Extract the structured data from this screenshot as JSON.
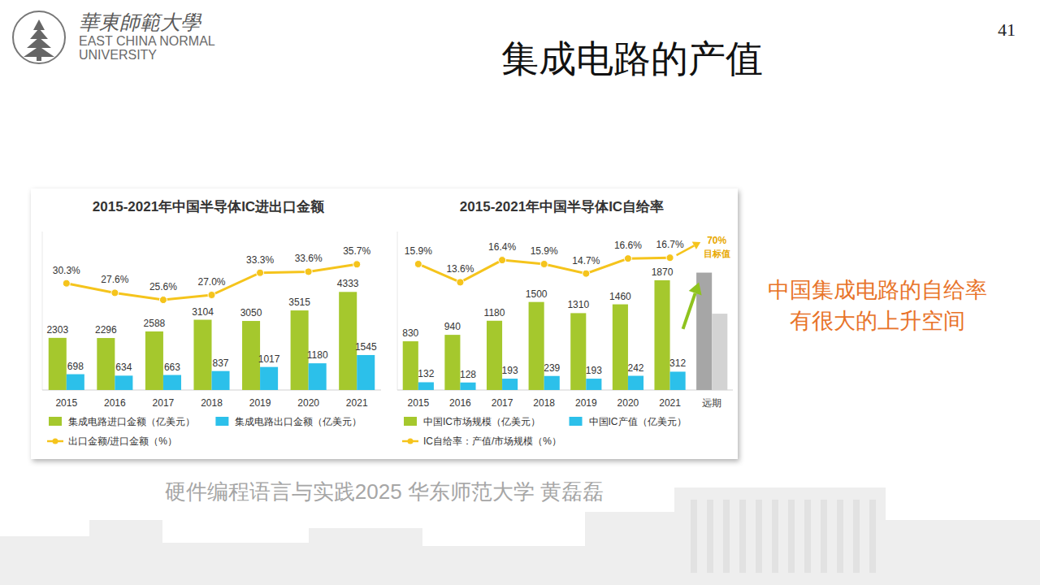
{
  "slide": {
    "title": "集成电路的产值",
    "page_number": "41",
    "logo": {
      "chinese": "華東師範大學",
      "english_line1": "EAST CHINA NORMAL",
      "english_line2": "UNIVERSITY"
    },
    "note": [
      "中国集成电路的自给率",
      "有很大的上升空间"
    ],
    "watermark": "硬件编程语言与实践2025 华东师范大学 黄磊磊"
  },
  "chart_data": [
    {
      "type": "bar",
      "title": "2015-2021年中国半导体IC进出口金额",
      "categories": [
        "2015",
        "2016",
        "2017",
        "2018",
        "2019",
        "2020",
        "2021"
      ],
      "series": [
        {
          "name": "集成电路进口金额（亿美元）",
          "type": "bar",
          "color": "#a5c82d",
          "values": [
            2303,
            2296,
            2588,
            3104,
            3050,
            3515,
            4333
          ]
        },
        {
          "name": "集成电路出口金额（亿美元）",
          "type": "bar",
          "color": "#2cc0ea",
          "values": [
            698,
            634,
            663,
            837,
            1017,
            1180,
            1545
          ]
        },
        {
          "name": "出口金额/进口金额（%）",
          "type": "line",
          "axis": "y2",
          "color": "#f5c41c",
          "marker": "circle",
          "values": [
            30.3,
            27.6,
            25.6,
            27.0,
            33.3,
            33.6,
            35.7
          ],
          "value_labels": [
            "30.3%",
            "27.6%",
            "25.6%",
            "27.0%",
            "33.3%",
            "33.6%",
            "35.7%"
          ]
        }
      ],
      "ylim": [
        0,
        7000
      ],
      "y2lim": [
        0,
        45
      ],
      "grid": false,
      "legend": "bottom",
      "data_labels": true,
      "tick_labels": "x"
    },
    {
      "type": "bar",
      "title": "2015-2021年中国半导体IC自给率",
      "categories": [
        "2015",
        "2016",
        "2017",
        "2018",
        "2019",
        "2020",
        "2021",
        "远期"
      ],
      "series": [
        {
          "name": "中国IC市场规模（亿美元）",
          "type": "bar",
          "color": "#a5c82d",
          "colors": [
            "#a5c82d",
            "#a5c82d",
            "#a5c82d",
            "#a5c82d",
            "#a5c82d",
            "#a5c82d",
            "#a5c82d",
            "#a6a6a6"
          ],
          "values": [
            830,
            940,
            1180,
            1500,
            1310,
            1460,
            1870,
            2000
          ],
          "value_labels": [
            "830",
            "940",
            "1180",
            "1500",
            "1310",
            "1460",
            "1870",
            null
          ]
        },
        {
          "name": "中国IC产值（亿美元）",
          "type": "bar",
          "color": "#2cc0ea",
          "colors": [
            "#2cc0ea",
            "#2cc0ea",
            "#2cc0ea",
            "#2cc0ea",
            "#2cc0ea",
            "#2cc0ea",
            "#2cc0ea",
            "#d3d3d3"
          ],
          "values": [
            132,
            128,
            193,
            239,
            193,
            242,
            312,
            1300
          ],
          "value_labels": [
            "132",
            "128",
            "193",
            "239",
            "193",
            "242",
            "312",
            null
          ]
        },
        {
          "name": "IC自给率：产值/市场规模（%）",
          "type": "line",
          "axis": "y2",
          "color": "#f5c41c",
          "marker": "circle",
          "values": [
            15.9,
            13.6,
            16.4,
            15.9,
            14.7,
            16.6,
            16.7,
            null
          ],
          "value_labels": [
            "15.9%",
            "13.6%",
            "16.4%",
            "15.9%",
            "14.7%",
            "16.6%",
            "16.7%",
            null
          ]
        }
      ],
      "annotations": [
        "70%",
        "目标值"
      ],
      "ylim": [
        0,
        2700
      ],
      "y2lim": [
        0,
        20
      ],
      "grid": false,
      "legend": "bottom",
      "data_labels": true,
      "tick_labels": "x"
    }
  ]
}
